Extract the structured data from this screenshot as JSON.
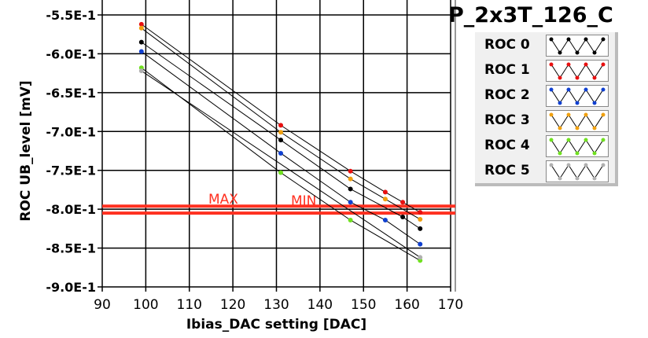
{
  "chart_data": {
    "type": "line",
    "title": "P_2x3T_126_C",
    "xlabel": "Ibias_DAC setting [DAC]",
    "ylabel": "ROC UB_level [mV]",
    "xlim": [
      90,
      170
    ],
    "ylim": [
      -0.9,
      -0.55
    ],
    "xticks": [
      "90",
      "100",
      "110",
      "120",
      "130",
      "140",
      "150",
      "160",
      "170"
    ],
    "yticks": [
      "-5.5E-1",
      "-6.0E-1",
      "-6.5E-1",
      "-7.0E-1",
      "-7.5E-1",
      "-8.0E-1",
      "-8.5E-1",
      "-9.0E-1"
    ],
    "grid": true,
    "legend_position": "top-right",
    "series": [
      {
        "name": "ROC 0",
        "color": "#000000",
        "x": [
          99,
          131,
          147,
          159,
          163
        ],
        "y": [
          -0.585,
          -0.711,
          -0.774,
          -0.81,
          -0.825
        ]
      },
      {
        "name": "ROC 1",
        "color": "#e81010",
        "x": [
          99,
          131,
          147,
          155,
          159,
          163
        ],
        "y": [
          -0.562,
          -0.692,
          -0.751,
          -0.778,
          -0.791,
          -0.804
        ]
      },
      {
        "name": "ROC 2",
        "color": "#1040d0",
        "x": [
          99,
          131,
          147,
          155,
          163
        ],
        "y": [
          -0.597,
          -0.728,
          -0.791,
          -0.814,
          -0.845
        ]
      },
      {
        "name": "ROC 3",
        "color": "#f0a010",
        "x": [
          99,
          131,
          147,
          155,
          163
        ],
        "y": [
          -0.567,
          -0.701,
          -0.761,
          -0.787,
          -0.813
        ]
      },
      {
        "name": "ROC 4",
        "color": "#70e020",
        "x": [
          99,
          131,
          147,
          163
        ],
        "y": [
          -0.618,
          -0.753,
          -0.814,
          -0.866
        ]
      },
      {
        "name": "ROC 5",
        "color": "#b0b0b0",
        "x": [
          99,
          163
        ],
        "y": [
          -0.622,
          -0.862
        ]
      }
    ],
    "limits": [
      {
        "label": "MAX",
        "y": -0.796
      },
      {
        "label": "MIN",
        "y": -0.805
      }
    ],
    "limit_color": "#ff3020"
  }
}
